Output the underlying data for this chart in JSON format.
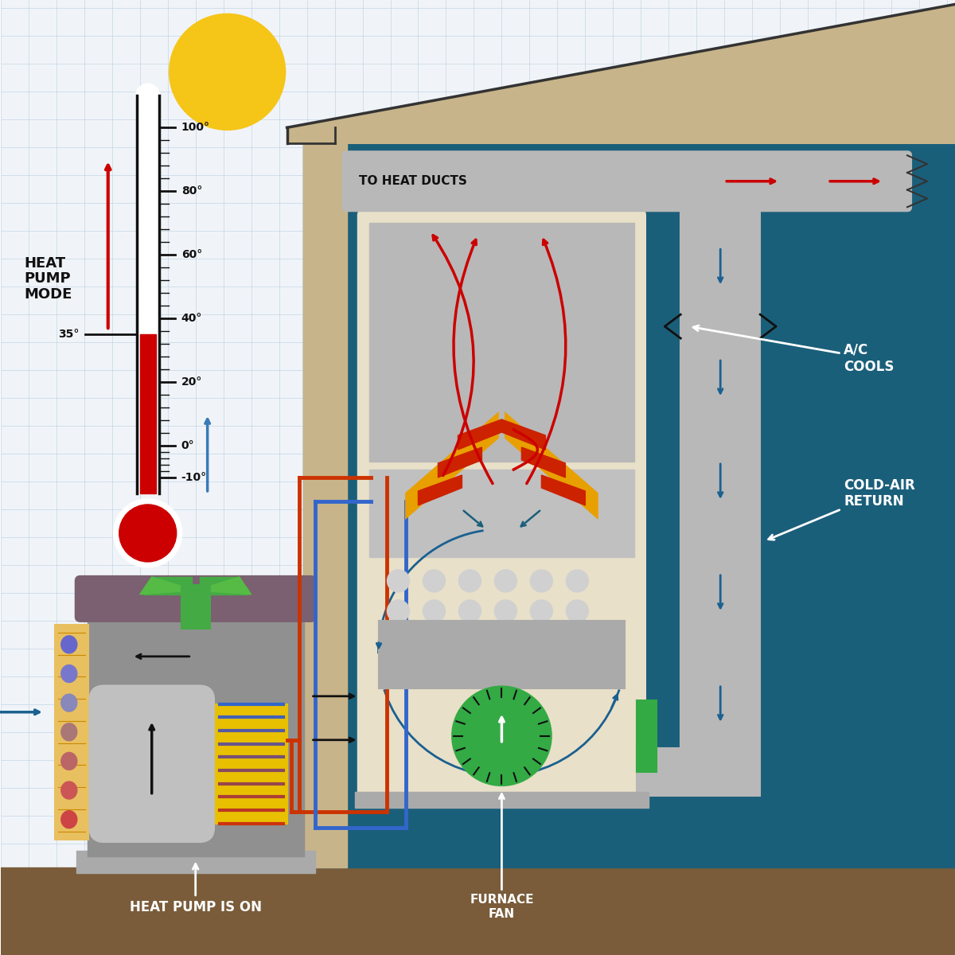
{
  "bg_color": "#f0f4f8",
  "grid_color": "#c5d5e5",
  "sun_color": "#f5c518",
  "sun_border": "#222222",
  "roof_color": "#c8b48a",
  "wall_color": "#1a5f7a",
  "duct_color": "#b8b8b8",
  "furnace_body_color": "#e8e0c8",
  "furnace_gray_top": "#c0c0c0",
  "heat_arrow_color": "#cc0000",
  "cool_arrow_color": "#1a6090",
  "ground_color": "#7a5c3a",
  "labels": {
    "heat_pump_is_on": "HEAT PUMP IS ON",
    "furnace_fan": "FURNACE\nFAN",
    "to_heat_ducts": "TO HEAT DUCTS",
    "ac_cools": "A/C\nCOOLS",
    "cold_air_return": "COLD-AIR\nRETURN"
  }
}
